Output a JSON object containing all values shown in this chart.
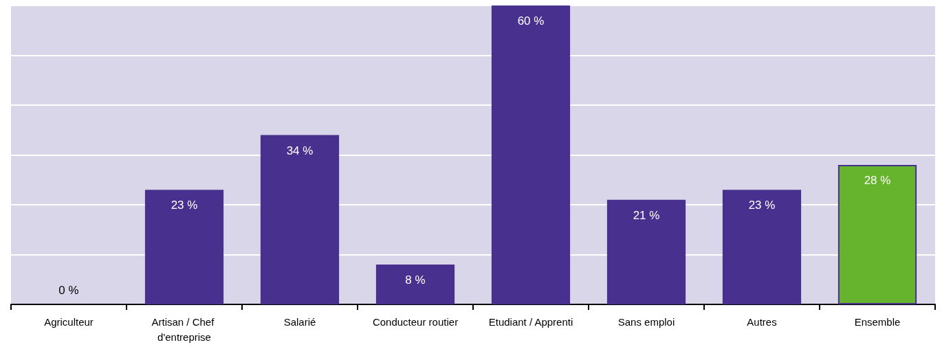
{
  "chart_data": {
    "type": "bar",
    "categories": [
      "Agriculteur",
      "Artisan / Chef d'entreprise",
      "Salarié",
      "Conducteur routier",
      "Etudiant / Apprenti",
      "Sans emploi",
      "Autres",
      "Ensemble"
    ],
    "values": [
      0,
      23,
      34,
      8,
      60,
      21,
      23,
      28
    ],
    "value_labels": [
      "0 %",
      "23 %",
      "34 %",
      "8 %",
      "60 %",
      "21 %",
      "23 %",
      "28 %"
    ],
    "colors": [
      "#48308f",
      "#48308f",
      "#48308f",
      "#48308f",
      "#48308f",
      "#48308f",
      "#48308f",
      "#66b32e"
    ],
    "ylim": [
      0,
      60
    ],
    "yticks": [
      0,
      10,
      20,
      30,
      40,
      50,
      60
    ],
    "grid": "y",
    "tick_labels": "x"
  }
}
